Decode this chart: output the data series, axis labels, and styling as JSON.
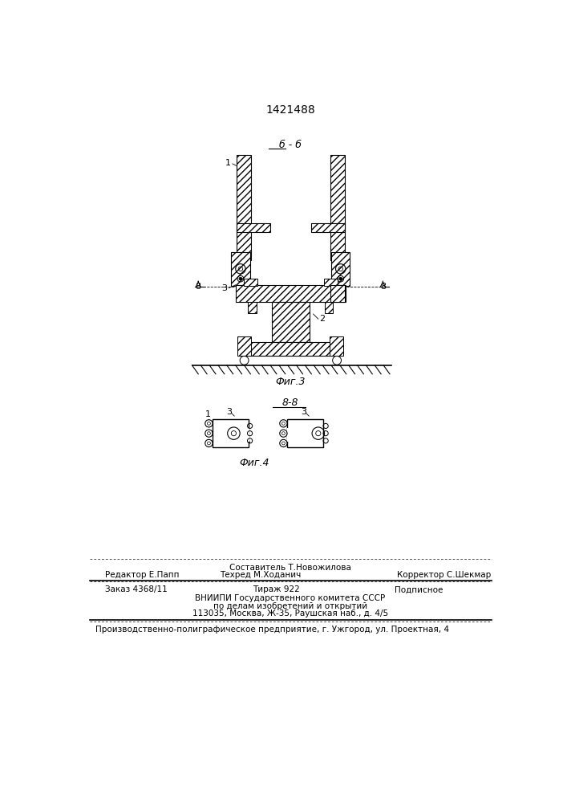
{
  "title": "1421488",
  "fig3_label": "Фиг.3",
  "fig4_label": "Фиг.4",
  "section_label_bb": "б - б",
  "section_label_88": "8-8",
  "background_color": "#ffffff",
  "text_color": "#000000",
  "footer": {
    "line1_center": "Составитель Т.Новожилова",
    "line2_left": "Редактор Е.Папп",
    "line2_center": "Техред М.Ходанич",
    "line2_right": "Корректор С.Шекмар",
    "line3_left": "Заказ 4368/11",
    "line3_center": "Тираж 922",
    "line3_right": "Подписное",
    "line4": "ВНИИПИ Государственного комитета СССР",
    "line5": "по делам изобретений и открытий",
    "line6": "113035, Москва, Ж-35, Раушская наб., д. 4/5",
    "line7": "Производственно-полиграфическое предприятие, г. Ужгород, ул. Проектная, 4"
  }
}
